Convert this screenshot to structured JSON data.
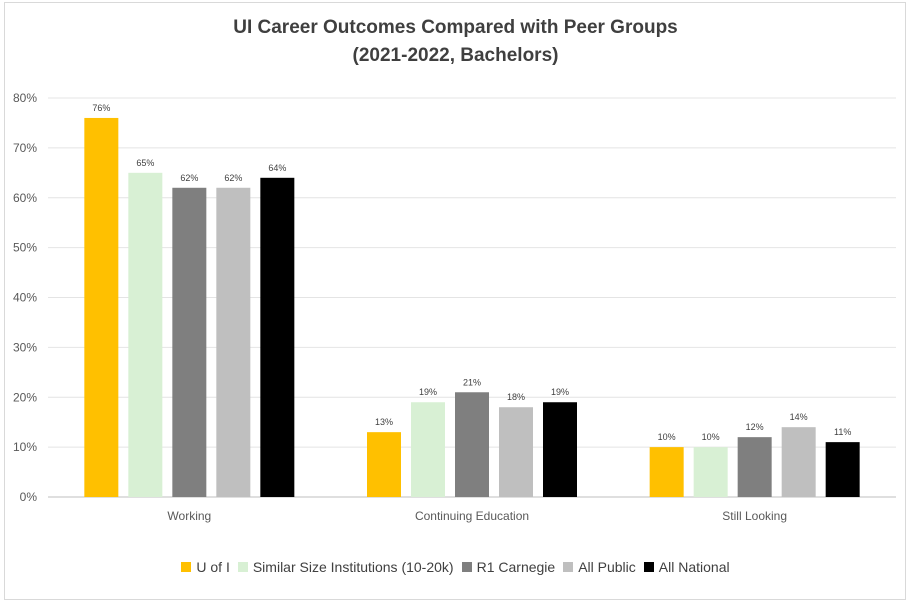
{
  "chart_data": {
    "type": "bar",
    "title": "UI Career Outcomes Compared with Peer Groups",
    "subtitle": "(2021-2022, Bachelors)",
    "categories": [
      "Working",
      "Continuing Education",
      "Still Looking"
    ],
    "series": [
      {
        "name": "U of I",
        "color": "#ffc000",
        "values": [
          76,
          13,
          10
        ]
      },
      {
        "name": "Similar Size Institutions (10-20k)",
        "color": "#d8f0d4",
        "values": [
          65,
          19,
          10
        ]
      },
      {
        "name": "R1 Carnegie",
        "color": "#7f7f7f",
        "values": [
          62,
          21,
          12
        ]
      },
      {
        "name": "All Public",
        "color": "#bfbfbf",
        "values": [
          62,
          18,
          14
        ]
      },
      {
        "name": "All National",
        "color": "#000000",
        "values": [
          64,
          19,
          11
        ]
      }
    ],
    "ylim": [
      0,
      80
    ],
    "yticks": [
      "0%",
      "10%",
      "20%",
      "30%",
      "40%",
      "50%",
      "60%",
      "70%",
      "80%"
    ],
    "value_suffix": "%",
    "grid": true,
    "legend_position": "bottom"
  }
}
